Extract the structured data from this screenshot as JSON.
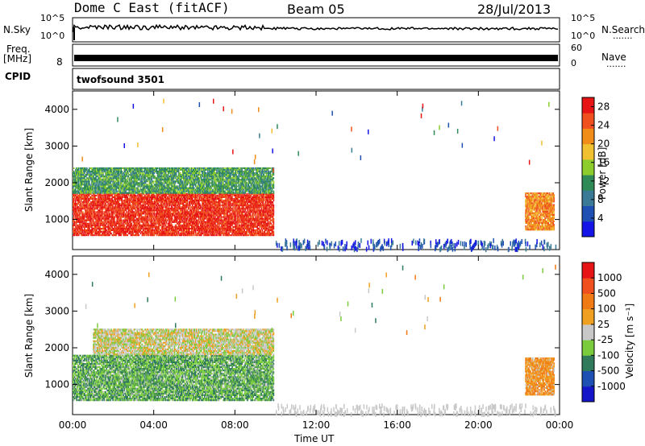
{
  "header": {
    "station": "Dome C East (fitACF)",
    "beam": "Beam 05",
    "date": "28/Jul/2013"
  },
  "strip_labels": {
    "nsky": "N.Sky",
    "nsearch": "N.Search",
    "freq_line1": "Freq.",
    "freq_line2": "[MHz]",
    "nave": "Nave",
    "cpid": "CPID",
    "cpid_value": "twofsound 3501",
    "sky_top": "10^5",
    "sky_bottom": "10^0",
    "search_top": "10^5",
    "search_bottom": "10^0",
    "freq_low": "8",
    "nave_top": "60",
    "nave_bottom": "0",
    "dots": "......."
  },
  "colors": {
    "power": [
      "#1414e6",
      "#1e50b4",
      "#3a7a96",
      "#2e8b57",
      "#8ccc2c",
      "#f0c030",
      "#f08c18",
      "#f0501e",
      "#e61414"
    ],
    "velocity": [
      "#e61414",
      "#f0501e",
      "#f07a14",
      "#f0a020",
      "#c8c8c8",
      "#7acc3c",
      "#2e7a5a",
      "#1e50b4",
      "#1414c8"
    ]
  },
  "chart_data": [
    {
      "type": "heatmap",
      "title": "Power",
      "xlabel": "Time UT",
      "ylabel": "Slant Range [km]",
      "x_ticks": [
        "00:00",
        "04:00",
        "08:00",
        "12:00",
        "16:00",
        "20:00",
        "00:00"
      ],
      "y_ticks": [
        "1000",
        "2000",
        "3000",
        "4000"
      ],
      "xlim_hours": [
        0,
        24
      ],
      "ylim_km": [
        180,
        4500
      ],
      "colorbar": {
        "label": "Power [dB]",
        "ticks": [
          "4",
          "8",
          "12",
          "16",
          "20",
          "24",
          "28"
        ],
        "range": [
          0,
          30
        ]
      },
      "regions": [
        {
          "t0": 0.0,
          "t1": 9.9,
          "r0": 550,
          "r1": 1700,
          "value": 27
        },
        {
          "t0": 0.0,
          "t1": 9.9,
          "r0": 1700,
          "r1": 2400,
          "value": 12
        },
        {
          "t0": 22.3,
          "t1": 23.7,
          "r0": 700,
          "r1": 1700,
          "value": 22
        }
      ]
    },
    {
      "type": "heatmap",
      "title": "Velocity",
      "xlabel": "Time UT",
      "ylabel": "Slant Range [km]",
      "x_ticks": [
        "00:00",
        "04:00",
        "08:00",
        "12:00",
        "16:00",
        "20:00",
        "00:00"
      ],
      "y_ticks": [
        "1000",
        "2000",
        "3000",
        "4000"
      ],
      "xlim_hours": [
        0,
        24
      ],
      "ylim_km": [
        180,
        4500
      ],
      "colorbar": {
        "label": "Velocity [m s⁻¹]",
        "ticks": [
          "1000",
          "500",
          "100",
          "25",
          "-25",
          "-100",
          "-500",
          "-1000"
        ],
        "range": [
          -1000,
          1000
        ]
      },
      "regions": [
        {
          "t0": 0.0,
          "t1": 9.9,
          "r0": 550,
          "r1": 1800,
          "value": -300
        },
        {
          "t0": 1.0,
          "t1": 9.9,
          "r0": 1800,
          "r1": 2500,
          "value": 0
        },
        {
          "t0": 22.3,
          "t1": 23.7,
          "r0": 700,
          "r1": 1700,
          "value": 300
        }
      ]
    }
  ]
}
